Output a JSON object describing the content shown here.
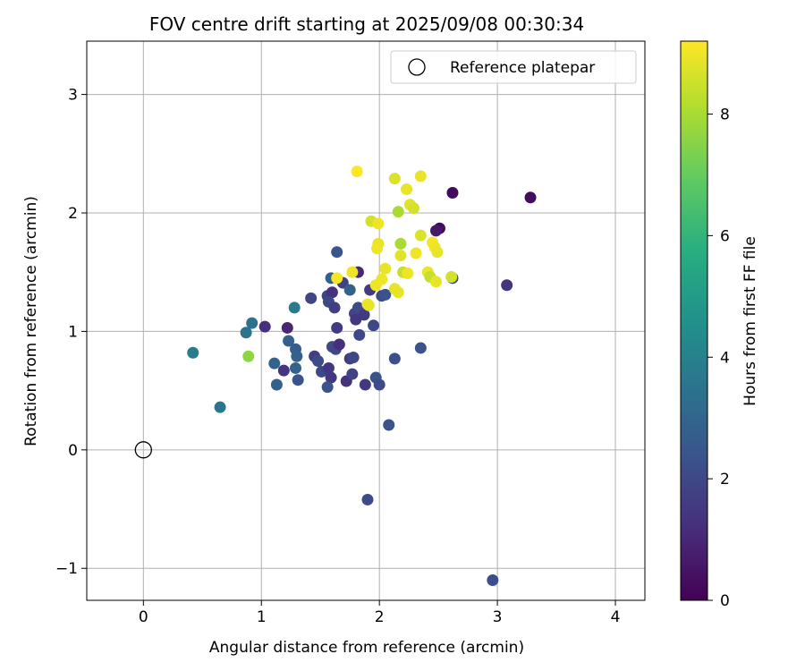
{
  "chart_data": {
    "type": "scatter",
    "title": "FOV centre drift starting at 2025/09/08 00:30:34",
    "xlabel": "Angular distance from reference (arcmin)",
    "ylabel": "Rotation from reference (arcmin)",
    "xlim": [
      -0.48,
      4.25
    ],
    "ylim": [
      -1.27,
      3.45
    ],
    "xticks": [
      0,
      1,
      2,
      3,
      4
    ],
    "yticks": [
      -1,
      0,
      1,
      2,
      3
    ],
    "xtick_labels": [
      "0",
      "1",
      "2",
      "3",
      "4"
    ],
    "ytick_labels": [
      "−1",
      "0",
      "1",
      "2",
      "3"
    ],
    "grid": true,
    "legend": {
      "position": "top-right",
      "label": "Reference platepar"
    },
    "reference_point": {
      "x": 0,
      "y": 0
    },
    "colorbar": {
      "label": "Hours from first FF file",
      "colormap": "viridis",
      "range": [
        0,
        9.2
      ],
      "ticks": [
        0,
        2,
        4,
        6,
        8
      ],
      "tick_labels": [
        "0",
        "2",
        "4",
        "6",
        "8"
      ]
    },
    "points": [
      {
        "x": 2.62,
        "y": 2.17,
        "h": 0.2
      },
      {
        "x": 3.28,
        "y": 2.13,
        "h": 0.3
      },
      {
        "x": 2.51,
        "y": 1.87,
        "h": 0.3
      },
      {
        "x": 2.48,
        "y": 1.85,
        "h": 0.6
      },
      {
        "x": 1.82,
        "y": 1.5,
        "h": 1.0
      },
      {
        "x": 3.08,
        "y": 1.39,
        "h": 1.4
      },
      {
        "x": 2.62,
        "y": 1.45,
        "h": 2.2
      },
      {
        "x": 1.64,
        "y": 1.67,
        "h": 2.4
      },
      {
        "x": 1.59,
        "y": 1.45,
        "h": 2.8
      },
      {
        "x": 1.69,
        "y": 1.41,
        "h": 1.8
      },
      {
        "x": 1.75,
        "y": 1.35,
        "h": 2.8
      },
      {
        "x": 1.92,
        "y": 1.35,
        "h": 1.6
      },
      {
        "x": 1.56,
        "y": 1.3,
        "h": 1.8
      },
      {
        "x": 1.6,
        "y": 1.33,
        "h": 1.3
      },
      {
        "x": 1.42,
        "y": 1.28,
        "h": 1.9
      },
      {
        "x": 1.57,
        "y": 1.25,
        "h": 2.0
      },
      {
        "x": 1.62,
        "y": 1.2,
        "h": 1.7
      },
      {
        "x": 1.79,
        "y": 1.15,
        "h": 1.9
      },
      {
        "x": 1.82,
        "y": 1.2,
        "h": 2.1
      },
      {
        "x": 1.87,
        "y": 1.14,
        "h": 1.6
      },
      {
        "x": 1.8,
        "y": 1.1,
        "h": 1.5
      },
      {
        "x": 1.95,
        "y": 1.05,
        "h": 2.0
      },
      {
        "x": 1.64,
        "y": 1.03,
        "h": 1.6
      },
      {
        "x": 1.83,
        "y": 0.97,
        "h": 2.0
      },
      {
        "x": 2.02,
        "y": 1.3,
        "h": 2.1
      },
      {
        "x": 2.05,
        "y": 1.31,
        "h": 2.3
      },
      {
        "x": 1.28,
        "y": 1.2,
        "h": 3.7
      },
      {
        "x": 0.92,
        "y": 1.07,
        "h": 3.4
      },
      {
        "x": 0.87,
        "y": 0.99,
        "h": 3.5
      },
      {
        "x": 1.03,
        "y": 1.04,
        "h": 1.2
      },
      {
        "x": 1.22,
        "y": 1.03,
        "h": 1.0
      },
      {
        "x": 1.23,
        "y": 0.92,
        "h": 2.8
      },
      {
        "x": 1.29,
        "y": 0.85,
        "h": 2.7
      },
      {
        "x": 1.3,
        "y": 0.79,
        "h": 2.8
      },
      {
        "x": 0.89,
        "y": 0.79,
        "h": 7.6
      },
      {
        "x": 0.42,
        "y": 0.82,
        "h": 3.8
      },
      {
        "x": 1.11,
        "y": 0.73,
        "h": 2.9
      },
      {
        "x": 1.19,
        "y": 0.67,
        "h": 1.4
      },
      {
        "x": 1.29,
        "y": 0.69,
        "h": 2.9
      },
      {
        "x": 1.13,
        "y": 0.55,
        "h": 2.8
      },
      {
        "x": 1.31,
        "y": 0.59,
        "h": 2.3
      },
      {
        "x": 0.65,
        "y": 0.36,
        "h": 3.6
      },
      {
        "x": 1.45,
        "y": 0.79,
        "h": 1.7
      },
      {
        "x": 1.48,
        "y": 0.75,
        "h": 2.1
      },
      {
        "x": 1.6,
        "y": 0.87,
        "h": 2.1
      },
      {
        "x": 1.63,
        "y": 0.85,
        "h": 1.9
      },
      {
        "x": 1.66,
        "y": 0.89,
        "h": 1.2
      },
      {
        "x": 1.51,
        "y": 0.66,
        "h": 2.0
      },
      {
        "x": 1.57,
        "y": 0.69,
        "h": 1.4
      },
      {
        "x": 1.59,
        "y": 0.61,
        "h": 1.5
      },
      {
        "x": 1.56,
        "y": 0.53,
        "h": 2.3
      },
      {
        "x": 1.72,
        "y": 0.58,
        "h": 1.3
      },
      {
        "x": 1.75,
        "y": 0.77,
        "h": 1.6
      },
      {
        "x": 1.78,
        "y": 0.78,
        "h": 2.0
      },
      {
        "x": 1.77,
        "y": 0.64,
        "h": 1.8
      },
      {
        "x": 1.88,
        "y": 0.55,
        "h": 1.5
      },
      {
        "x": 1.97,
        "y": 0.61,
        "h": 2.3
      },
      {
        "x": 2.0,
        "y": 0.55,
        "h": 2.1
      },
      {
        "x": 2.13,
        "y": 0.77,
        "h": 2.2
      },
      {
        "x": 2.35,
        "y": 0.86,
        "h": 2.3
      },
      {
        "x": 2.08,
        "y": 0.21,
        "h": 2.3
      },
      {
        "x": 1.9,
        "y": -0.42,
        "h": 2.1
      },
      {
        "x": 2.96,
        "y": -1.1,
        "h": 2.2
      },
      {
        "x": 1.81,
        "y": 2.35,
        "h": 9.2
      },
      {
        "x": 2.13,
        "y": 2.29,
        "h": 8.7
      },
      {
        "x": 2.35,
        "y": 2.31,
        "h": 8.9
      },
      {
        "x": 2.23,
        "y": 2.2,
        "h": 8.9
      },
      {
        "x": 2.26,
        "y": 2.07,
        "h": 8.8
      },
      {
        "x": 2.29,
        "y": 2.04,
        "h": 8.6
      },
      {
        "x": 2.16,
        "y": 2.01,
        "h": 8.0
      },
      {
        "x": 1.93,
        "y": 1.93,
        "h": 8.6
      },
      {
        "x": 1.99,
        "y": 1.91,
        "h": 9.0
      },
      {
        "x": 2.35,
        "y": 1.81,
        "h": 8.7
      },
      {
        "x": 2.45,
        "y": 1.75,
        "h": 9.1
      },
      {
        "x": 1.99,
        "y": 1.74,
        "h": 8.9
      },
      {
        "x": 2.18,
        "y": 1.74,
        "h": 8.0
      },
      {
        "x": 2.47,
        "y": 1.71,
        "h": 9.0
      },
      {
        "x": 1.98,
        "y": 1.7,
        "h": 9.0
      },
      {
        "x": 2.49,
        "y": 1.67,
        "h": 8.9
      },
      {
        "x": 2.31,
        "y": 1.66,
        "h": 9.0
      },
      {
        "x": 2.18,
        "y": 1.64,
        "h": 8.8
      },
      {
        "x": 2.05,
        "y": 1.53,
        "h": 8.9
      },
      {
        "x": 2.2,
        "y": 1.5,
        "h": 8.4
      },
      {
        "x": 2.24,
        "y": 1.49,
        "h": 9.0
      },
      {
        "x": 2.41,
        "y": 1.5,
        "h": 8.9
      },
      {
        "x": 1.77,
        "y": 1.5,
        "h": 9.0
      },
      {
        "x": 1.64,
        "y": 1.45,
        "h": 9.1
      },
      {
        "x": 2.43,
        "y": 1.46,
        "h": 8.4
      },
      {
        "x": 2.48,
        "y": 1.42,
        "h": 8.9
      },
      {
        "x": 2.61,
        "y": 1.46,
        "h": 8.6
      },
      {
        "x": 1.97,
        "y": 1.39,
        "h": 9.0
      },
      {
        "x": 2.02,
        "y": 1.44,
        "h": 9.0
      },
      {
        "x": 2.13,
        "y": 1.36,
        "h": 8.9
      },
      {
        "x": 2.16,
        "y": 1.33,
        "h": 8.9
      },
      {
        "x": 1.9,
        "y": 1.23,
        "h": 9.1
      },
      {
        "x": 1.91,
        "y": 1.22,
        "h": 8.9
      }
    ]
  }
}
